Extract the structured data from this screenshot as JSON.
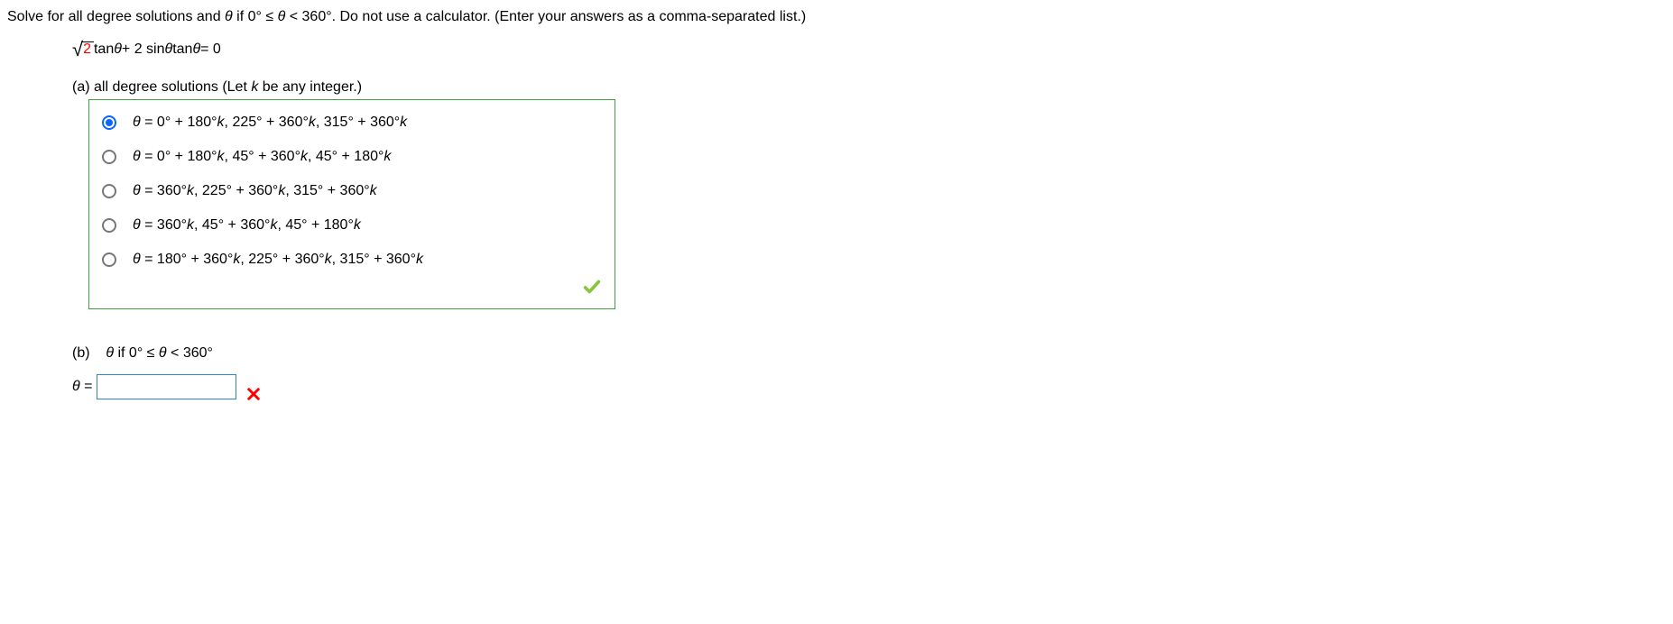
{
  "question": {
    "prompt_pre": "Solve for all degree solutions and ",
    "theta": "θ",
    "prompt_mid": " if 0° ≤ ",
    "prompt_after_theta2": " < 360°. Do not use a calculator. (Enter your answers as a comma-separated list.)"
  },
  "equation": {
    "sqrt_arg": "2",
    "after_sqrt": " tan ",
    "th1": "θ",
    "mid": " + 2 sin ",
    "th2": "θ",
    "mid2": " tan ",
    "th3": "θ",
    "end": " = 0"
  },
  "part_a": {
    "label_pre": "(a) all degree solutions (Let ",
    "k": "k",
    "label_post": " be any integer.)"
  },
  "options": {
    "box_border_color": "#3fa33f",
    "selected_index": 0,
    "items": [
      "θ = 0° + 180°k, 225° + 360°k, 315° + 360°k",
      "θ = 0° + 180°k, 45° + 360°k, 45° + 180°k",
      "θ = 360°k, 225° + 360°k, 315° + 360°k",
      "θ = 360°k, 45° + 360°k, 45° + 180°k",
      "θ = 180° + 360°k, 225° + 360°k, 315° + 360°k"
    ]
  },
  "feedback": {
    "part_a_correct": true,
    "part_b_correct": false,
    "check_color": "#8ac53e",
    "cross_color": "#ff0000"
  },
  "part_b": {
    "label": "(b)",
    "text_mid": "θ if 0° ≤ θ < 360°",
    "answer_prefix": "θ =",
    "input_value": "",
    "input_border_color": "#2a84d4"
  }
}
